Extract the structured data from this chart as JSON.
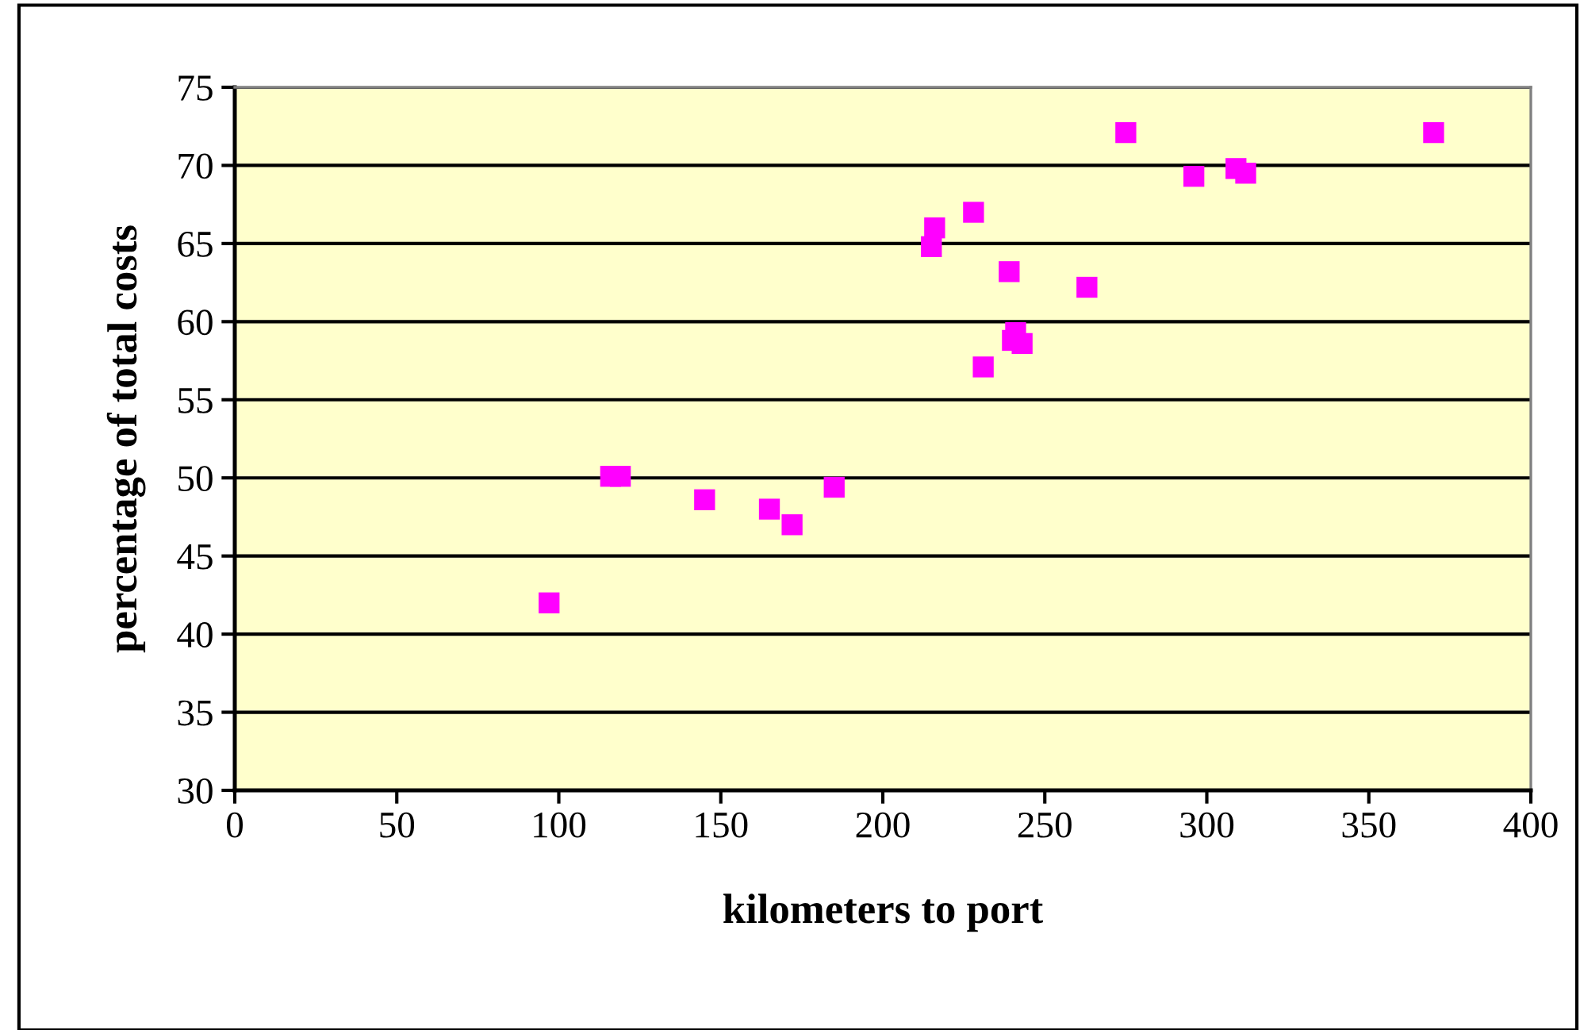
{
  "chart_data": {
    "type": "scatter",
    "xlabel": "kilometers to port",
    "ylabel": "percentage of total costs",
    "x": [
      97,
      116,
      119,
      145,
      165,
      172,
      185,
      215,
      216,
      228,
      231,
      239,
      240,
      241,
      243,
      263,
      275,
      296,
      309,
      312,
      370
    ],
    "values": [
      42,
      50.1,
      50.1,
      48.6,
      48,
      47,
      49.4,
      64.8,
      66,
      67,
      57.1,
      63.2,
      58.8,
      59.3,
      58.6,
      62.2,
      72.1,
      69.3,
      69.8,
      69.5,
      72.1
    ],
    "color": "#ff00ff",
    "marker": "square",
    "xlim": [
      0,
      400
    ],
    "xticks": [
      0,
      50,
      100,
      150,
      200,
      250,
      300,
      350,
      400
    ],
    "ylim": [
      30,
      75
    ],
    "yticks": [
      30,
      35,
      40,
      45,
      50,
      55,
      60,
      65,
      70,
      75
    ],
    "grid": "y",
    "legend": false
  }
}
